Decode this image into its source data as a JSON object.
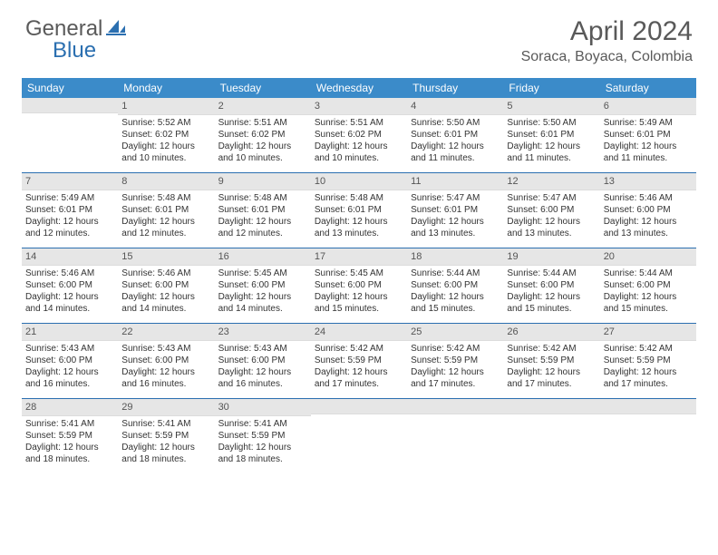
{
  "brand": {
    "general": "General",
    "blue": "Blue"
  },
  "title": "April 2024",
  "location": "Soraca, Boyaca, Colombia",
  "colors": {
    "header_bg": "#3b8bc9",
    "header_text": "#ffffff",
    "rule": "#2b6fb0",
    "daynum_bg": "#e6e6e6",
    "text": "#333333",
    "muted": "#595959"
  },
  "daysOfWeek": [
    "Sunday",
    "Monday",
    "Tuesday",
    "Wednesday",
    "Thursday",
    "Friday",
    "Saturday"
  ],
  "weeks": [
    [
      {
        "n": ""
      },
      {
        "n": "1",
        "sr": "5:52 AM",
        "ss": "6:02 PM",
        "dl": "12 hours and 10 minutes."
      },
      {
        "n": "2",
        "sr": "5:51 AM",
        "ss": "6:02 PM",
        "dl": "12 hours and 10 minutes."
      },
      {
        "n": "3",
        "sr": "5:51 AM",
        "ss": "6:02 PM",
        "dl": "12 hours and 10 minutes."
      },
      {
        "n": "4",
        "sr": "5:50 AM",
        "ss": "6:01 PM",
        "dl": "12 hours and 11 minutes."
      },
      {
        "n": "5",
        "sr": "5:50 AM",
        "ss": "6:01 PM",
        "dl": "12 hours and 11 minutes."
      },
      {
        "n": "6",
        "sr": "5:49 AM",
        "ss": "6:01 PM",
        "dl": "12 hours and 11 minutes."
      }
    ],
    [
      {
        "n": "7",
        "sr": "5:49 AM",
        "ss": "6:01 PM",
        "dl": "12 hours and 12 minutes."
      },
      {
        "n": "8",
        "sr": "5:48 AM",
        "ss": "6:01 PM",
        "dl": "12 hours and 12 minutes."
      },
      {
        "n": "9",
        "sr": "5:48 AM",
        "ss": "6:01 PM",
        "dl": "12 hours and 12 minutes."
      },
      {
        "n": "10",
        "sr": "5:48 AM",
        "ss": "6:01 PM",
        "dl": "12 hours and 13 minutes."
      },
      {
        "n": "11",
        "sr": "5:47 AM",
        "ss": "6:01 PM",
        "dl": "12 hours and 13 minutes."
      },
      {
        "n": "12",
        "sr": "5:47 AM",
        "ss": "6:00 PM",
        "dl": "12 hours and 13 minutes."
      },
      {
        "n": "13",
        "sr": "5:46 AM",
        "ss": "6:00 PM",
        "dl": "12 hours and 13 minutes."
      }
    ],
    [
      {
        "n": "14",
        "sr": "5:46 AM",
        "ss": "6:00 PM",
        "dl": "12 hours and 14 minutes."
      },
      {
        "n": "15",
        "sr": "5:46 AM",
        "ss": "6:00 PM",
        "dl": "12 hours and 14 minutes."
      },
      {
        "n": "16",
        "sr": "5:45 AM",
        "ss": "6:00 PM",
        "dl": "12 hours and 14 minutes."
      },
      {
        "n": "17",
        "sr": "5:45 AM",
        "ss": "6:00 PM",
        "dl": "12 hours and 15 minutes."
      },
      {
        "n": "18",
        "sr": "5:44 AM",
        "ss": "6:00 PM",
        "dl": "12 hours and 15 minutes."
      },
      {
        "n": "19",
        "sr": "5:44 AM",
        "ss": "6:00 PM",
        "dl": "12 hours and 15 minutes."
      },
      {
        "n": "20",
        "sr": "5:44 AM",
        "ss": "6:00 PM",
        "dl": "12 hours and 15 minutes."
      }
    ],
    [
      {
        "n": "21",
        "sr": "5:43 AM",
        "ss": "6:00 PM",
        "dl": "12 hours and 16 minutes."
      },
      {
        "n": "22",
        "sr": "5:43 AM",
        "ss": "6:00 PM",
        "dl": "12 hours and 16 minutes."
      },
      {
        "n": "23",
        "sr": "5:43 AM",
        "ss": "6:00 PM",
        "dl": "12 hours and 16 minutes."
      },
      {
        "n": "24",
        "sr": "5:42 AM",
        "ss": "5:59 PM",
        "dl": "12 hours and 17 minutes."
      },
      {
        "n": "25",
        "sr": "5:42 AM",
        "ss": "5:59 PM",
        "dl": "12 hours and 17 minutes."
      },
      {
        "n": "26",
        "sr": "5:42 AM",
        "ss": "5:59 PM",
        "dl": "12 hours and 17 minutes."
      },
      {
        "n": "27",
        "sr": "5:42 AM",
        "ss": "5:59 PM",
        "dl": "12 hours and 17 minutes."
      }
    ],
    [
      {
        "n": "28",
        "sr": "5:41 AM",
        "ss": "5:59 PM",
        "dl": "12 hours and 18 minutes."
      },
      {
        "n": "29",
        "sr": "5:41 AM",
        "ss": "5:59 PM",
        "dl": "12 hours and 18 minutes."
      },
      {
        "n": "30",
        "sr": "5:41 AM",
        "ss": "5:59 PM",
        "dl": "12 hours and 18 minutes."
      },
      {
        "n": ""
      },
      {
        "n": ""
      },
      {
        "n": ""
      },
      {
        "n": ""
      }
    ]
  ],
  "labels": {
    "sunrise": "Sunrise:",
    "sunset": "Sunset:",
    "daylight": "Daylight:"
  }
}
